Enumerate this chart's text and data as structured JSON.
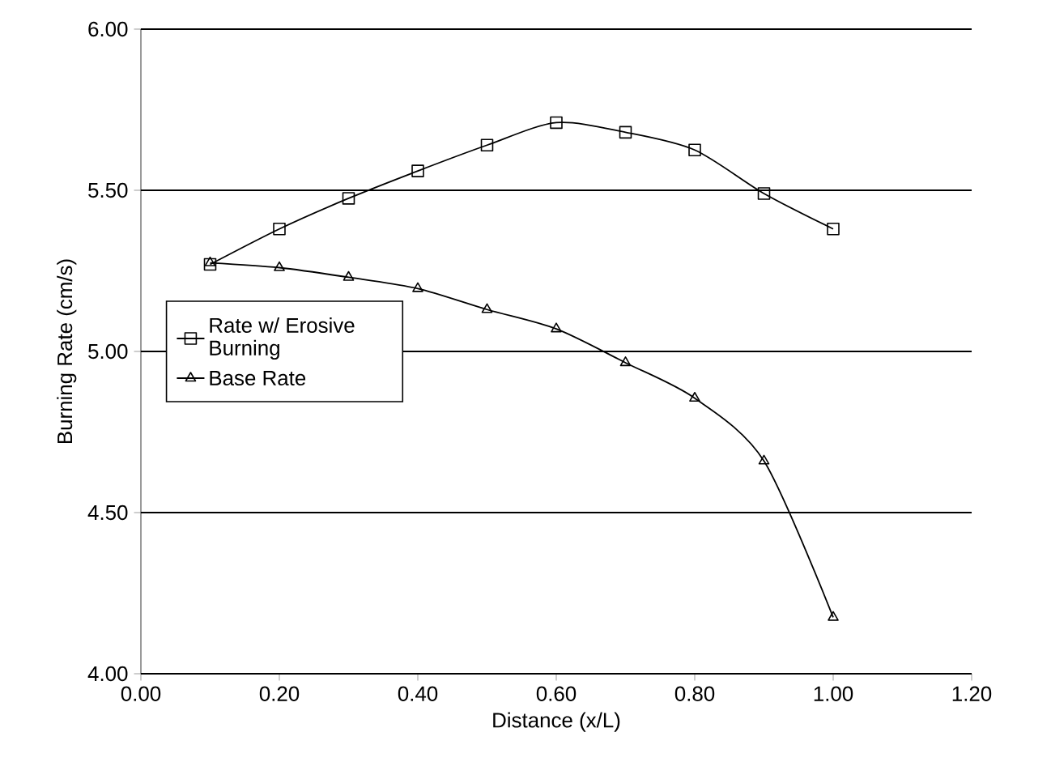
{
  "chart_data": {
    "type": "line",
    "xlabel": "Distance (x/L)",
    "ylabel": "Burning Rate (cm/s)",
    "x": [
      0.1,
      0.2,
      0.3,
      0.4,
      0.5,
      0.6,
      0.7,
      0.8,
      0.9,
      1.0
    ],
    "series": [
      {
        "name": "Rate w/ Erosive Burning",
        "color": "#000000",
        "marker": "square",
        "values": [
          5.27,
          5.38,
          5.475,
          5.56,
          5.64,
          5.71,
          5.68,
          5.625,
          5.49,
          5.38
        ]
      },
      {
        "name": "Base Rate",
        "color": "#000000",
        "marker": "triangle",
        "values": [
          5.275,
          5.26,
          5.23,
          5.195,
          5.13,
          5.07,
          4.965,
          4.855,
          4.66,
          4.175
        ]
      }
    ],
    "xlim": [
      0,
      1.2
    ],
    "xticks": [
      {
        "value": 0,
        "label": "0.00"
      },
      {
        "value": 0.2,
        "label": "0.20"
      },
      {
        "value": 0.4,
        "label": "0.40"
      },
      {
        "value": 0.6,
        "label": "0.60"
      },
      {
        "value": 0.8,
        "label": "0.80"
      },
      {
        "value": 1.0,
        "label": "1.00"
      },
      {
        "value": 1.2,
        "label": "1.20"
      }
    ],
    "ylim": [
      4,
      6
    ],
    "yticks": [
      {
        "value": 4,
        "label": "4.00"
      },
      {
        "value": 4.5,
        "label": "4.50"
      },
      {
        "value": 5,
        "label": "5.00"
      },
      {
        "value": 5.5,
        "label": "5.50"
      },
      {
        "value": 6,
        "label": "6.00"
      }
    ],
    "grid": "y",
    "legend": "center left"
  }
}
